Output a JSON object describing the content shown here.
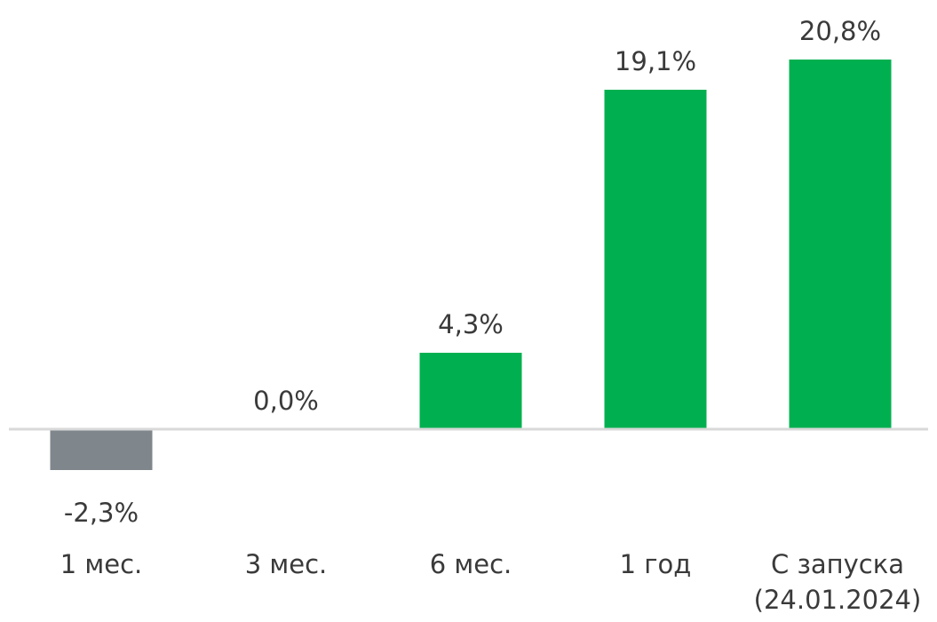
{
  "chart_data": {
    "type": "bar",
    "categories": [
      [
        "1 мес."
      ],
      [
        "3 мес."
      ],
      [
        "6 мес."
      ],
      [
        "1 год"
      ],
      [
        "С запуска",
        "(24.01.2024)"
      ]
    ],
    "values": [
      -2.3,
      0.0,
      4.3,
      19.1,
      20.8
    ],
    "value_labels": [
      "-2,3%",
      "0,0%",
      "4,3%",
      "19,1%",
      "20,8%"
    ],
    "colors": {
      "positive": "#00b050",
      "zero": "#c8e6d2",
      "negative": "#7f868c",
      "baseline": "#d9d9d9"
    },
    "grid": false,
    "legend": "none"
  }
}
